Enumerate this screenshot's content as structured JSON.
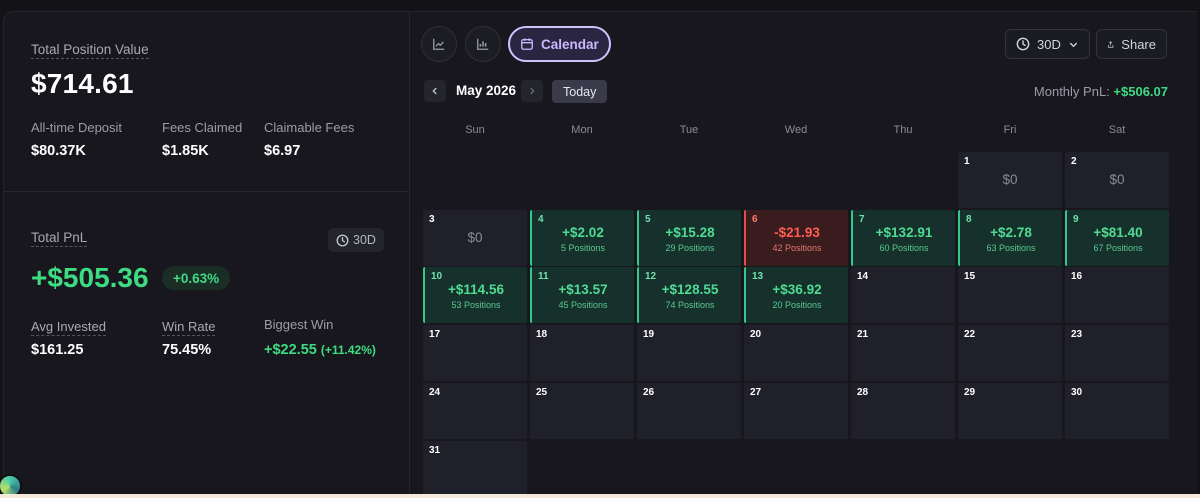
{
  "summary": {
    "total_position_value_label": "Total Position Value",
    "total_position_value": "$714.61",
    "stats": [
      {
        "label": "All-time Deposit",
        "value": "$80.37K"
      },
      {
        "label": "Fees Claimed",
        "value": "$1.85K"
      },
      {
        "label": "Claimable Fees",
        "value": "$6.97"
      }
    ]
  },
  "pnl": {
    "label": "Total PnL",
    "period": "30D",
    "value": "+$505.36",
    "percent": "+0.63%",
    "avg_invested_label": "Avg Invested",
    "avg_invested": "$161.25",
    "win_rate_label": "Win Rate",
    "win_rate": "75.45%",
    "biggest_win_label": "Biggest Win",
    "biggest_win": "+$22.55",
    "biggest_win_pct": "(+11.42%)"
  },
  "toolbar": {
    "calendar_label": "Calendar",
    "period": "30D",
    "share_label": "Share"
  },
  "calendar": {
    "month": "May 2026",
    "today_label": "Today",
    "monthly_label": "Monthly PnL:",
    "monthly_value": "+$506.07",
    "weekdays": [
      "Sun",
      "Mon",
      "Tue",
      "Wed",
      "Thu",
      "Fri",
      "Sat"
    ],
    "days": [
      {
        "day": "1",
        "amount": "$0",
        "positions": ""
      },
      {
        "day": "2",
        "amount": "$0",
        "positions": ""
      },
      {
        "day": "3",
        "amount": "$0",
        "positions": ""
      },
      {
        "day": "4",
        "amount": "+$2.02",
        "positions": "5 Positions"
      },
      {
        "day": "5",
        "amount": "+$15.28",
        "positions": "29 Positions"
      },
      {
        "day": "6",
        "amount": "-$21.93",
        "positions": "42 Positions"
      },
      {
        "day": "7",
        "amount": "+$132.91",
        "positions": "60 Positions"
      },
      {
        "day": "8",
        "amount": "+$2.78",
        "positions": "63 Positions"
      },
      {
        "day": "9",
        "amount": "+$81.40",
        "positions": "67 Positions"
      },
      {
        "day": "10",
        "amount": "+$114.56",
        "positions": "53 Positions"
      },
      {
        "day": "11",
        "amount": "+$13.57",
        "positions": "45 Positions"
      },
      {
        "day": "12",
        "amount": "+$128.55",
        "positions": "74 Positions"
      },
      {
        "day": "13",
        "amount": "+$36.92",
        "positions": "20 Positions"
      },
      {
        "day": "14"
      },
      {
        "day": "15"
      },
      {
        "day": "16"
      },
      {
        "day": "17"
      },
      {
        "day": "18"
      },
      {
        "day": "19"
      },
      {
        "day": "20"
      },
      {
        "day": "21"
      },
      {
        "day": "22"
      },
      {
        "day": "23"
      },
      {
        "day": "24"
      },
      {
        "day": "25"
      },
      {
        "day": "26"
      },
      {
        "day": "27"
      },
      {
        "day": "28"
      },
      {
        "day": "29"
      },
      {
        "day": "30"
      },
      {
        "day": "31"
      }
    ]
  },
  "colors": {
    "positive": "#3ddc84",
    "negative": "#ff5c50",
    "accent": "#c9b9ff"
  }
}
